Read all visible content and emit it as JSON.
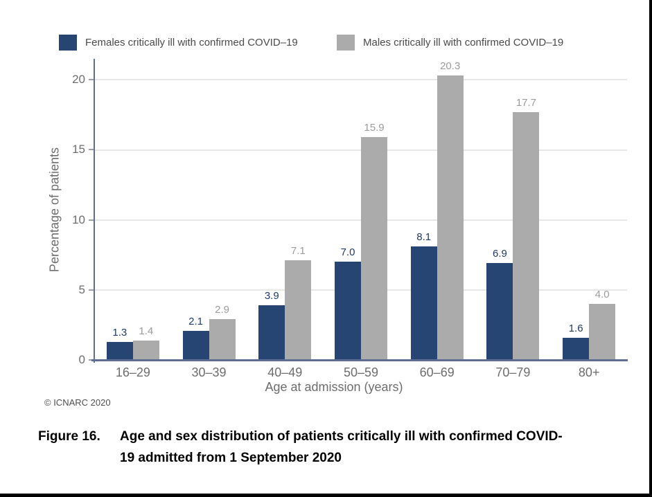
{
  "legend": {
    "items": [
      {
        "label": "Females critically ill with confirmed COVID–19",
        "color": "#274572"
      },
      {
        "label": "Males critically ill with confirmed COVID–19",
        "color": "#ababab"
      }
    ]
  },
  "chart_data": {
    "type": "bar",
    "title": "Figure 16. Age and sex distribution of patients critically ill with confirmed COVID-19 admitted from 1 September 2020",
    "categories": [
      "16–29",
      "30–39",
      "40–49",
      "50–59",
      "60–69",
      "70–79",
      "80+"
    ],
    "series": [
      {
        "name": "Females critically ill with confirmed COVID–19",
        "color": "#274572",
        "label_color": "#1f3a68",
        "values": [
          1.3,
          2.1,
          3.9,
          7.0,
          8.1,
          6.9,
          1.6
        ]
      },
      {
        "name": "Males critically ill with confirmed COVID–19",
        "color": "#ababab",
        "label_color": "#9b9b9b",
        "values": [
          1.4,
          2.9,
          7.1,
          15.9,
          20.3,
          17.7,
          4.0
        ]
      }
    ],
    "xlabel": "Age at admission (years)",
    "ylabel": "Percentage of patients",
    "yticks": [
      0,
      5,
      10,
      15,
      20
    ],
    "ylim": [
      0,
      21.4
    ],
    "grid": true,
    "bar_labels": true,
    "legend_position": "top"
  },
  "footer": {
    "copyright": "© ICNARC 2020"
  },
  "caption": {
    "label": "Figure 16.",
    "line1": "Age and sex distribution of patients critically ill with confirmed COVID-",
    "line2": "19 admitted from 1 September 2020"
  }
}
